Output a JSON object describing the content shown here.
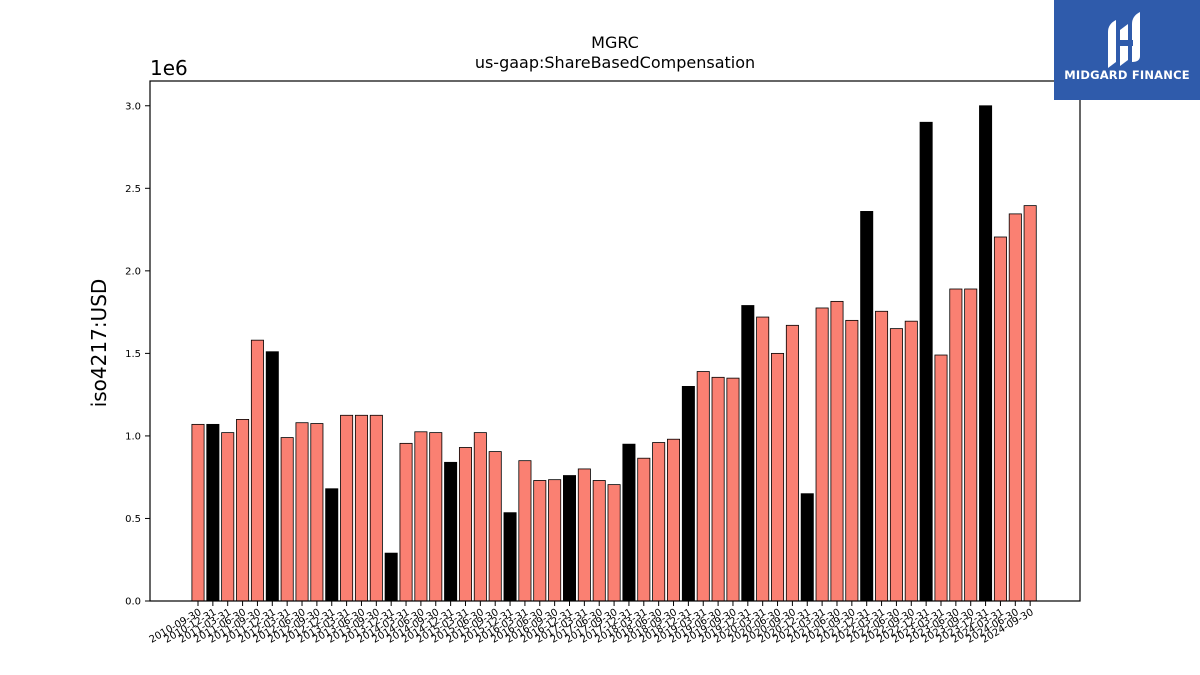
{
  "chart_data": {
    "type": "bar",
    "title": "MGRC",
    "subtitle": "us-gaap:ShareBasedCompensation",
    "ylabel": "iso4217:USD",
    "xlabel": "",
    "scale_label": "1e6",
    "ylim": [
      0,
      3150000
    ],
    "yticks": [
      "0.0",
      "0.5",
      "1.0",
      "1.5",
      "2.0",
      "2.5",
      "3.0"
    ],
    "colors": {
      "quarter": "#fa8072",
      "annual": "#000000"
    },
    "categories": [
      "2010-09-30",
      "2010-12-31",
      "2011-03-31",
      "2011-06-30",
      "2011-09-30",
      "2011-12-31",
      "2012-03-31",
      "2012-06-30",
      "2012-09-30",
      "2012-12-31",
      "2013-03-31",
      "2013-06-30",
      "2013-09-30",
      "2013-12-31",
      "2014-03-31",
      "2014-06-30",
      "2014-09-30",
      "2014-12-31",
      "2015-03-31",
      "2015-06-30",
      "2015-09-30",
      "2015-12-31",
      "2016-03-31",
      "2016-06-30",
      "2016-09-30",
      "2016-12-31",
      "2017-03-31",
      "2017-06-30",
      "2017-09-30",
      "2017-12-31",
      "2018-03-31",
      "2018-06-30",
      "2018-09-30",
      "2018-12-31",
      "2019-03-31",
      "2019-06-30",
      "2019-09-30",
      "2019-12-31",
      "2020-03-31",
      "2020-06-30",
      "2020-09-30",
      "2020-12-31",
      "2021-03-31",
      "2021-06-30",
      "2021-09-30",
      "2021-12-31",
      "2022-03-31",
      "2022-06-30",
      "2022-09-30",
      "2022-12-31",
      "2023-03-31",
      "2023-06-30",
      "2023-09-30",
      "2023-12-31",
      "2024-03-31",
      "2024-06-30",
      "2024-09-30"
    ],
    "values": [
      1070000,
      1070000,
      1020000,
      1100000,
      1580000,
      1510000,
      990000,
      1080000,
      1075000,
      680000,
      1125000,
      1125000,
      1125000,
      290000,
      955000,
      1025000,
      1020000,
      840000,
      930000,
      1020000,
      905000,
      535000,
      850000,
      730000,
      735000,
      760000,
      800000,
      730000,
      705000,
      950000,
      865000,
      960000,
      980000,
      1300000,
      1390000,
      1355000,
      1350000,
      1790000,
      1720000,
      1500000,
      1670000,
      650000,
      1775000,
      1815000,
      1700000,
      2360000,
      1755000,
      1650000,
      1695000,
      2900000,
      1490000,
      1890000,
      1890000,
      3000000,
      2205000,
      2345000,
      2395000
    ],
    "annual": [
      false,
      true,
      false,
      false,
      false,
      true,
      false,
      false,
      false,
      true,
      false,
      false,
      false,
      true,
      false,
      false,
      false,
      true,
      false,
      false,
      false,
      true,
      false,
      false,
      false,
      true,
      false,
      false,
      false,
      true,
      false,
      false,
      false,
      true,
      false,
      false,
      false,
      true,
      false,
      false,
      false,
      true,
      false,
      false,
      false,
      true,
      false,
      false,
      false,
      true,
      false,
      false,
      false,
      true,
      false,
      false,
      false
    ]
  },
  "logo": {
    "text": "MIDGARD FINANCE"
  }
}
